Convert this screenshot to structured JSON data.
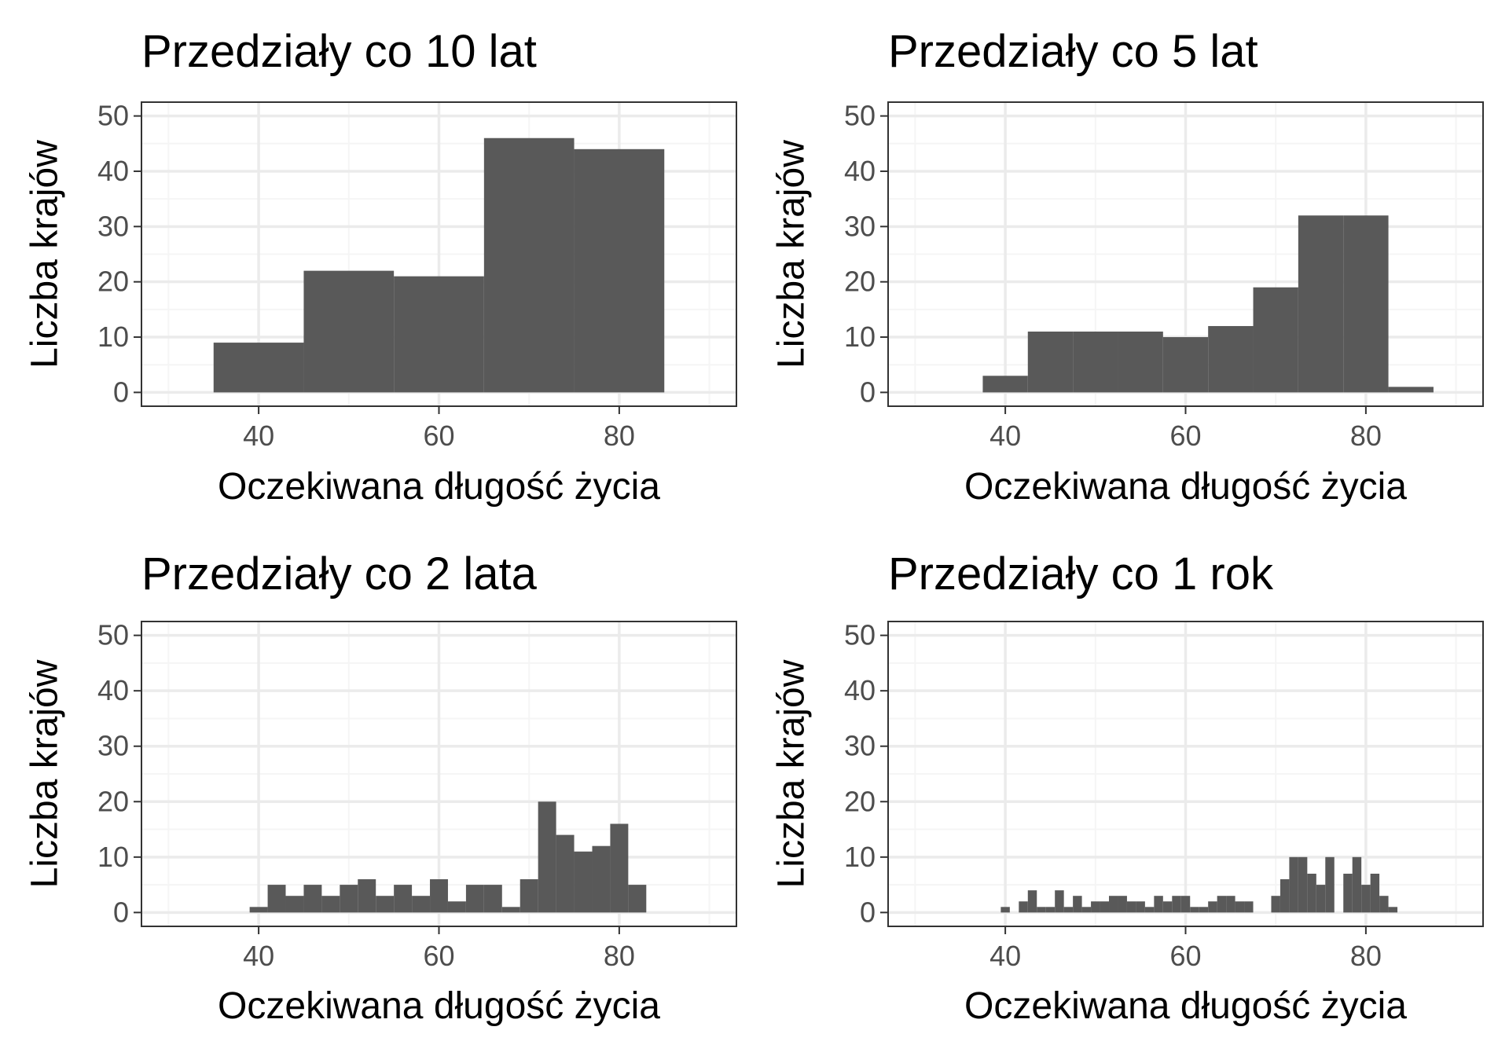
{
  "chart_data": [
    {
      "type": "bar",
      "title": "Przedziały co 10 lat",
      "xlabel": "Oczekiwana długość życia",
      "ylabel": "Liczba krajów",
      "xlim": [
        27,
        93
      ],
      "ylim": [
        -2.5,
        52.5
      ],
      "xticks": [
        "40",
        "60",
        "80"
      ],
      "yticks": [
        "0",
        "10",
        "20",
        "30",
        "40",
        "50"
      ],
      "grid": true,
      "bin_width": 10,
      "bins": [
        {
          "x0": 35,
          "x1": 45,
          "count": 9
        },
        {
          "x0": 45,
          "x1": 55,
          "count": 22
        },
        {
          "x0": 55,
          "x1": 65,
          "count": 21
        },
        {
          "x0": 65,
          "x1": 75,
          "count": 46
        },
        {
          "x0": 75,
          "x1": 85,
          "count": 44
        }
      ]
    },
    {
      "type": "bar",
      "title": "Przedziały co 5 lat",
      "xlabel": "Oczekiwana długość życia",
      "ylabel": "Liczba krajów",
      "xlim": [
        27,
        93
      ],
      "ylim": [
        -2.5,
        52.5
      ],
      "xticks": [
        "40",
        "60",
        "80"
      ],
      "yticks": [
        "0",
        "10",
        "20",
        "30",
        "40",
        "50"
      ],
      "grid": true,
      "bin_width": 5,
      "bins": [
        {
          "x0": 37.5,
          "x1": 42.5,
          "count": 3
        },
        {
          "x0": 42.5,
          "x1": 47.5,
          "count": 11
        },
        {
          "x0": 47.5,
          "x1": 52.5,
          "count": 11
        },
        {
          "x0": 52.5,
          "x1": 57.5,
          "count": 11
        },
        {
          "x0": 57.5,
          "x1": 62.5,
          "count": 10
        },
        {
          "x0": 62.5,
          "x1": 67.5,
          "count": 12
        },
        {
          "x0": 67.5,
          "x1": 72.5,
          "count": 19
        },
        {
          "x0": 72.5,
          "x1": 77.5,
          "count": 32
        },
        {
          "x0": 77.5,
          "x1": 82.5,
          "count": 32
        },
        {
          "x0": 82.5,
          "x1": 87.5,
          "count": 1
        }
      ]
    },
    {
      "type": "bar",
      "title": "Przedziały co 2 lata",
      "xlabel": "Oczekiwana długość życia",
      "ylabel": "Liczba krajów",
      "xlim": [
        27,
        93
      ],
      "ylim": [
        -2.5,
        52.5
      ],
      "xticks": [
        "40",
        "60",
        "80"
      ],
      "yticks": [
        "0",
        "10",
        "20",
        "30",
        "40",
        "50"
      ],
      "grid": true,
      "bin_width": 2,
      "bins": [
        {
          "x0": 39,
          "x1": 41,
          "count": 1
        },
        {
          "x0": 41,
          "x1": 43,
          "count": 5
        },
        {
          "x0": 43,
          "x1": 45,
          "count": 3
        },
        {
          "x0": 45,
          "x1": 47,
          "count": 5
        },
        {
          "x0": 47,
          "x1": 49,
          "count": 3
        },
        {
          "x0": 49,
          "x1": 51,
          "count": 5
        },
        {
          "x0": 51,
          "x1": 53,
          "count": 6
        },
        {
          "x0": 53,
          "x1": 55,
          "count": 3
        },
        {
          "x0": 55,
          "x1": 57,
          "count": 5
        },
        {
          "x0": 57,
          "x1": 59,
          "count": 3
        },
        {
          "x0": 59,
          "x1": 61,
          "count": 6
        },
        {
          "x0": 61,
          "x1": 63,
          "count": 2
        },
        {
          "x0": 63,
          "x1": 65,
          "count": 5
        },
        {
          "x0": 65,
          "x1": 67,
          "count": 5
        },
        {
          "x0": 67,
          "x1": 69,
          "count": 1
        },
        {
          "x0": 69,
          "x1": 71,
          "count": 6
        },
        {
          "x0": 71,
          "x1": 73,
          "count": 20
        },
        {
          "x0": 73,
          "x1": 75,
          "count": 14
        },
        {
          "x0": 75,
          "x1": 77,
          "count": 11
        },
        {
          "x0": 77,
          "x1": 79,
          "count": 12
        },
        {
          "x0": 79,
          "x1": 81,
          "count": 16
        },
        {
          "x0": 81,
          "x1": 83,
          "count": 5
        }
      ]
    },
    {
      "type": "bar",
      "title": "Przedziały co 1 rok",
      "xlabel": "Oczekiwana długość życia",
      "ylabel": "Liczba krajów",
      "xlim": [
        27,
        93
      ],
      "ylim": [
        -2.5,
        52.5
      ],
      "xticks": [
        "40",
        "60",
        "80"
      ],
      "yticks": [
        "0",
        "10",
        "20",
        "30",
        "40",
        "50"
      ],
      "grid": true,
      "bin_width": 1,
      "bins": [
        {
          "x0": 39.5,
          "x1": 40.5,
          "count": 1
        },
        {
          "x0": 41.5,
          "x1": 42.5,
          "count": 2
        },
        {
          "x0": 42.5,
          "x1": 43.5,
          "count": 4
        },
        {
          "x0": 43.5,
          "x1": 44.5,
          "count": 1
        },
        {
          "x0": 44.5,
          "x1": 45.5,
          "count": 1
        },
        {
          "x0": 45.5,
          "x1": 46.5,
          "count": 4
        },
        {
          "x0": 46.5,
          "x1": 47.5,
          "count": 1
        },
        {
          "x0": 47.5,
          "x1": 48.5,
          "count": 3
        },
        {
          "x0": 48.5,
          "x1": 49.5,
          "count": 1
        },
        {
          "x0": 49.5,
          "x1": 50.5,
          "count": 2
        },
        {
          "x0": 50.5,
          "x1": 51.5,
          "count": 2
        },
        {
          "x0": 51.5,
          "x1": 52.5,
          "count": 3
        },
        {
          "x0": 52.5,
          "x1": 53.5,
          "count": 3
        },
        {
          "x0": 53.5,
          "x1": 54.5,
          "count": 2
        },
        {
          "x0": 54.5,
          "x1": 55.5,
          "count": 2
        },
        {
          "x0": 55.5,
          "x1": 56.5,
          "count": 1
        },
        {
          "x0": 56.5,
          "x1": 57.5,
          "count": 3
        },
        {
          "x0": 57.5,
          "x1": 58.5,
          "count": 2
        },
        {
          "x0": 58.5,
          "x1": 59.5,
          "count": 3
        },
        {
          "x0": 59.5,
          "x1": 60.5,
          "count": 3
        },
        {
          "x0": 60.5,
          "x1": 61.5,
          "count": 1
        },
        {
          "x0": 61.5,
          "x1": 62.5,
          "count": 1
        },
        {
          "x0": 62.5,
          "x1": 63.5,
          "count": 2
        },
        {
          "x0": 63.5,
          "x1": 64.5,
          "count": 3
        },
        {
          "x0": 64.5,
          "x1": 65.5,
          "count": 3
        },
        {
          "x0": 65.5,
          "x1": 66.5,
          "count": 2
        },
        {
          "x0": 66.5,
          "x1": 67.5,
          "count": 2
        },
        {
          "x0": 69.5,
          "x1": 70.5,
          "count": 3
        },
        {
          "x0": 70.5,
          "x1": 71.5,
          "count": 6
        },
        {
          "x0": 71.5,
          "x1": 72.5,
          "count": 10
        },
        {
          "x0": 72.5,
          "x1": 73.5,
          "count": 10
        },
        {
          "x0": 73.5,
          "x1": 74.5,
          "count": 7
        },
        {
          "x0": 74.5,
          "x1": 75.5,
          "count": 5
        },
        {
          "x0": 75.5,
          "x1": 76.5,
          "count": 10
        },
        {
          "x0": 77.5,
          "x1": 78.5,
          "count": 7
        },
        {
          "x0": 78.5,
          "x1": 79.5,
          "count": 10
        },
        {
          "x0": 79.5,
          "x1": 80.5,
          "count": 5
        },
        {
          "x0": 80.5,
          "x1": 81.5,
          "count": 7
        },
        {
          "x0": 81.5,
          "x1": 82.5,
          "count": 3
        },
        {
          "x0": 82.5,
          "x1": 83.5,
          "count": 1
        }
      ]
    }
  ],
  "colors": {
    "bar_fill": "#595959",
    "panel_border": "#333333",
    "grid_major": "#ebebeb",
    "grid_minor": "#f5f5f5",
    "tick_text": "#4d4d4d",
    "title_text": "#000000"
  }
}
